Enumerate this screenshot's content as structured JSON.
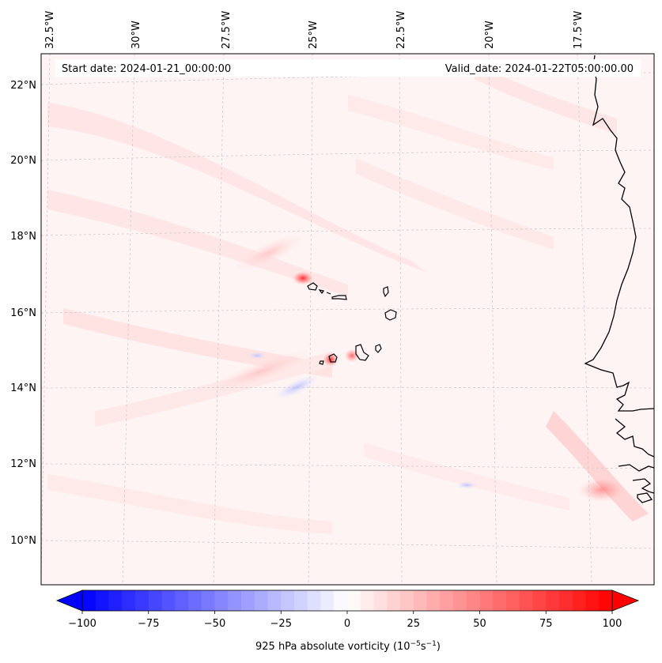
{
  "header": {
    "start_date": "Start date: 2024-01-21_00:00:00",
    "valid_date": "Valid_date: 2024-01-22T05:00:00.00"
  },
  "map": {
    "lat_labels": [
      "22°N",
      "20°N",
      "18°N",
      "16°N",
      "14°N",
      "12°N",
      "10°N"
    ],
    "lon_labels": [
      "32.5°W",
      "30°W",
      "27.5°W",
      "25°W",
      "22.5°W",
      "20°W",
      "17.5°W"
    ],
    "colors": {
      "background_tint": "#fff5f5",
      "positive_light": "#ffe0e0",
      "positive_strong": "#ff4040",
      "negative_light": "#e6e8ff",
      "coastline": "#000000",
      "grid": "#c8c8c8"
    }
  },
  "colorbar": {
    "label_html": "925 hPa absolute vorticity (10<tspan dy=\"-5\" font-size=\"9\">−5</tspan><tspan dy=\"5\">s</tspan><tspan dy=\"-5\" font-size=\"9\">−1</tspan><tspan dy=\"5\">)</tspan>",
    "ticks": [
      "−100",
      "−75",
      "−50",
      "−25",
      "0",
      "25",
      "50",
      "75",
      "100"
    ],
    "cmap": "bwr",
    "min": -100,
    "max": 100
  }
}
